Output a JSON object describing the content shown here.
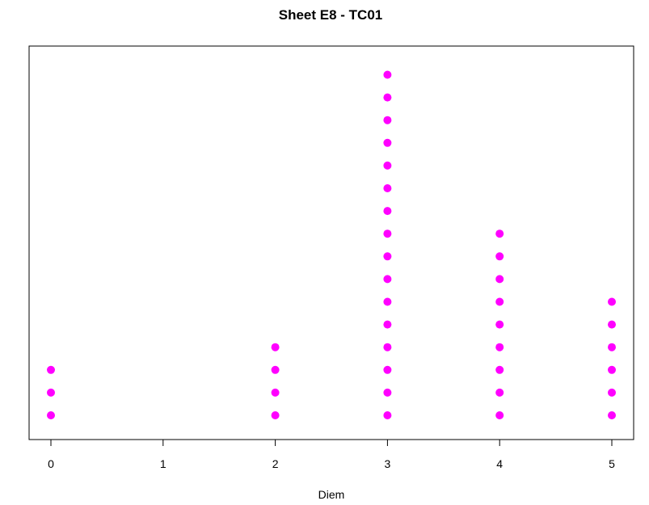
{
  "chart_data": {
    "type": "scatter",
    "title": "Sheet E8 - TC01",
    "xlabel": "Diem",
    "ylabel": "",
    "xlim": [
      0,
      5
    ],
    "x_ticks": [
      "0",
      "1",
      "2",
      "3",
      "4",
      "5"
    ],
    "y_axis_shown": false,
    "grid": false,
    "legend": "none",
    "stack_counts": [
      {
        "x": 0,
        "count": 3
      },
      {
        "x": 1,
        "count": 0
      },
      {
        "x": 2,
        "count": 4
      },
      {
        "x": 3,
        "count": 16
      },
      {
        "x": 4,
        "count": 9
      },
      {
        "x": 5,
        "count": 6
      }
    ],
    "point_color": "#ff00ff"
  }
}
